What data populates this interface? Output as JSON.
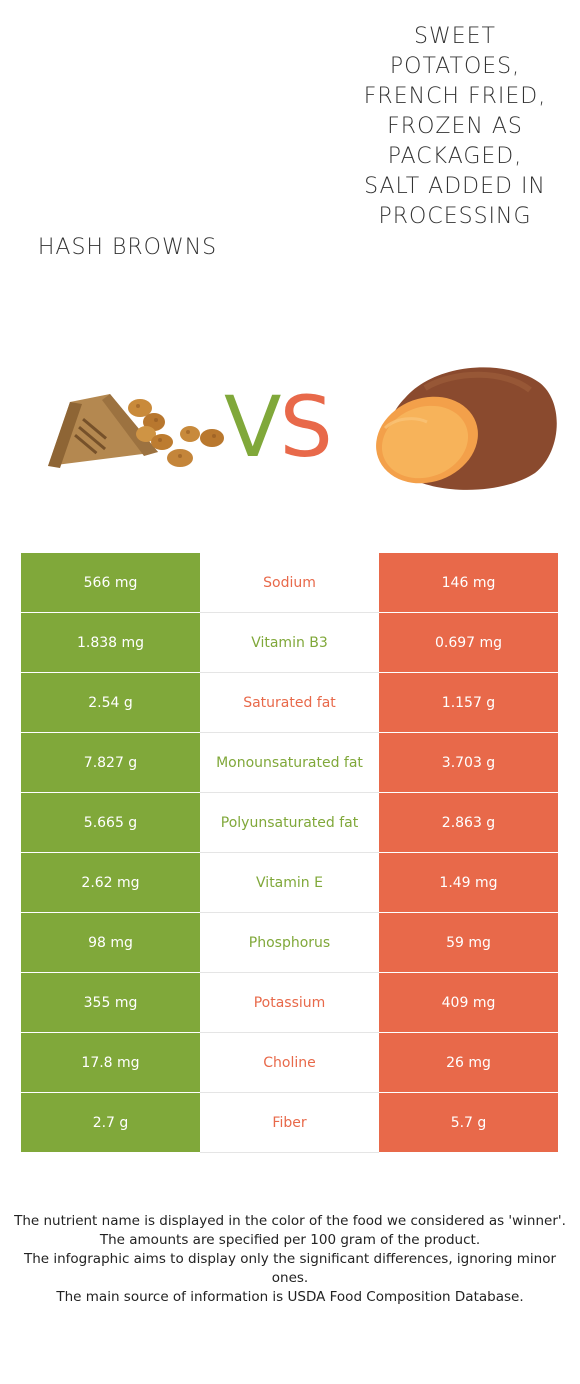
{
  "left_food": {
    "name": "Hash browns",
    "color": "#80a83a"
  },
  "right_food": {
    "name": "Sweet potatoes, french fried, frozen as packaged, salt added in processing",
    "color": "#e8694a"
  },
  "vs": {
    "v": "V",
    "s": "S"
  },
  "rows": [
    {
      "left": "566 mg",
      "nutrient": "Sodium",
      "right": "146 mg",
      "winner": "right"
    },
    {
      "left": "1.838 mg",
      "nutrient": "Vitamin B3",
      "right": "0.697 mg",
      "winner": "left"
    },
    {
      "left": "2.54 g",
      "nutrient": "Saturated fat",
      "right": "1.157 g",
      "winner": "right"
    },
    {
      "left": "7.827 g",
      "nutrient": "Monounsaturated fat",
      "right": "3.703 g",
      "winner": "left"
    },
    {
      "left": "5.665 g",
      "nutrient": "Polyunsaturated fat",
      "right": "2.863 g",
      "winner": "left"
    },
    {
      "left": "2.62 mg",
      "nutrient": "Vitamin E",
      "right": "1.49 mg",
      "winner": "left"
    },
    {
      "left": "98 mg",
      "nutrient": "Phosphorus",
      "right": "59 mg",
      "winner": "left"
    },
    {
      "left": "355 mg",
      "nutrient": "Potassium",
      "right": "409 mg",
      "winner": "right"
    },
    {
      "left": "17.8 mg",
      "nutrient": "Choline",
      "right": "26 mg",
      "winner": "right"
    },
    {
      "left": "2.7 g",
      "nutrient": "Fiber",
      "right": "5.7 g",
      "winner": "right"
    }
  ],
  "footer": {
    "line1": "The nutrient name is displayed in the color of the food we considered as 'winner'.",
    "line2": "The amounts are specified per 100 gram of the product.",
    "line3": "The infographic aims to display only the significant differences, ignoring minor ones.",
    "line4": "The main source of information is USDA Food Composition Database."
  }
}
